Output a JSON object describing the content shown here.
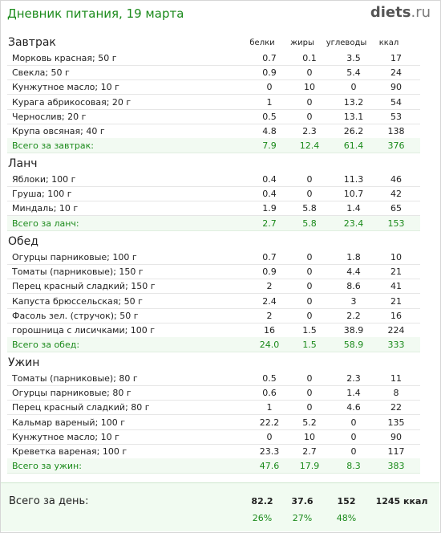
{
  "header": {
    "title": "Дневник питания, 19 марта",
    "logo_main": "diets",
    "logo_tld": ".ru"
  },
  "columns": {
    "protein": "белки",
    "fat": "жиры",
    "carbs": "углеводы",
    "kcal": "ккал"
  },
  "meals": [
    {
      "title": "Завтрак",
      "rows": [
        {
          "name": "Морковь красная; 50 г",
          "p": "0.7",
          "f": "0.1",
          "c": "3.5",
          "k": "17"
        },
        {
          "name": "Свекла; 50 г",
          "p": "0.9",
          "f": "0",
          "c": "5.4",
          "k": "24"
        },
        {
          "name": "Кунжутное масло; 10 г",
          "p": "0",
          "f": "10",
          "c": "0",
          "k": "90"
        },
        {
          "name": "Курага абрикосовая; 20 г",
          "p": "1",
          "f": "0",
          "c": "13.2",
          "k": "54"
        },
        {
          "name": "Чернослив; 20 г",
          "p": "0.5",
          "f": "0",
          "c": "13.1",
          "k": "53"
        },
        {
          "name": "Крупа овсяная; 40 г",
          "p": "4.8",
          "f": "2.3",
          "c": "26.2",
          "k": "138"
        }
      ],
      "total": {
        "name": "Всего за завтрак:",
        "p": "7.9",
        "f": "12.4",
        "c": "61.4",
        "k": "376"
      }
    },
    {
      "title": "Ланч",
      "rows": [
        {
          "name": "Яблоки; 100 г",
          "p": "0.4",
          "f": "0",
          "c": "11.3",
          "k": "46"
        },
        {
          "name": "Груша; 100 г",
          "p": "0.4",
          "f": "0",
          "c": "10.7",
          "k": "42"
        },
        {
          "name": "Миндаль; 10 г",
          "p": "1.9",
          "f": "5.8",
          "c": "1.4",
          "k": "65"
        }
      ],
      "total": {
        "name": "Всего за ланч:",
        "p": "2.7",
        "f": "5.8",
        "c": "23.4",
        "k": "153"
      }
    },
    {
      "title": "Обед",
      "rows": [
        {
          "name": "Огурцы парниковые; 100 г",
          "p": "0.7",
          "f": "0",
          "c": "1.8",
          "k": "10"
        },
        {
          "name": "Томаты (парниковые); 150 г",
          "p": "0.9",
          "f": "0",
          "c": "4.4",
          "k": "21"
        },
        {
          "name": "Перец красный сладкий; 150 г",
          "p": "2",
          "f": "0",
          "c": "8.6",
          "k": "41"
        },
        {
          "name": "Капуста брюссельская; 50 г",
          "p": "2.4",
          "f": "0",
          "c": "3",
          "k": "21"
        },
        {
          "name": "Фасоль зел. (стручок); 50 г",
          "p": "2",
          "f": "0",
          "c": "2.2",
          "k": "16"
        },
        {
          "name": "горошница с лисичками; 100 г",
          "p": "16",
          "f": "1.5",
          "c": "38.9",
          "k": "224"
        }
      ],
      "total": {
        "name": "Всего за обед:",
        "p": "24.0",
        "f": "1.5",
        "c": "58.9",
        "k": "333"
      }
    },
    {
      "title": "Ужин",
      "rows": [
        {
          "name": "Томаты (парниковые); 80 г",
          "p": "0.5",
          "f": "0",
          "c": "2.3",
          "k": "11"
        },
        {
          "name": "Огурцы парниковые; 80 г",
          "p": "0.6",
          "f": "0",
          "c": "1.4",
          "k": "8"
        },
        {
          "name": "Перец красный сладкий; 80 г",
          "p": "1",
          "f": "0",
          "c": "4.6",
          "k": "22"
        },
        {
          "name": "Кальмар вареный; 100 г",
          "p": "22.2",
          "f": "5.2",
          "c": "0",
          "k": "135"
        },
        {
          "name": "Кунжутное масло; 10 г",
          "p": "0",
          "f": "10",
          "c": "0",
          "k": "90"
        },
        {
          "name": "Креветка вареная; 100 г",
          "p": "23.3",
          "f": "2.7",
          "c": "0",
          "k": "117"
        }
      ],
      "total": {
        "name": "Всего за ужин:",
        "p": "47.6",
        "f": "17.9",
        "c": "8.3",
        "k": "383"
      }
    }
  ],
  "day": {
    "label": "Всего за день:",
    "p": "82.2",
    "f": "37.6",
    "c": "152",
    "k": "1245 ккал",
    "p_pct": "26%",
    "f_pct": "27%",
    "c_pct": "48%"
  }
}
